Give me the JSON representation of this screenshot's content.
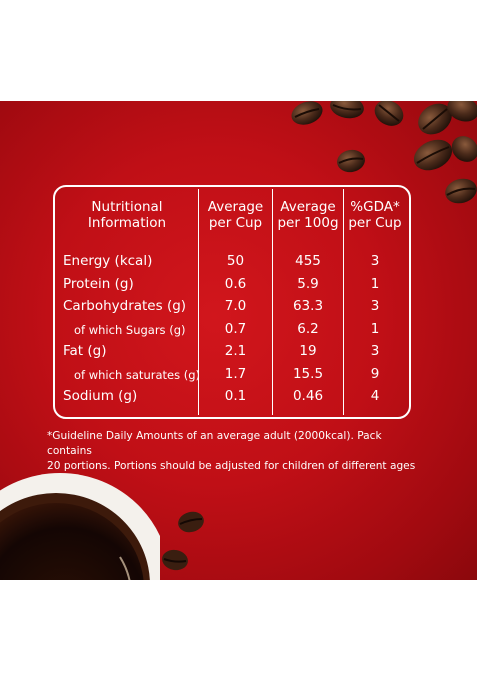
{
  "table": {
    "headers": [
      {
        "line1": "Nutritional",
        "line2": "Information"
      },
      {
        "line1": "Average",
        "line2": "per Cup"
      },
      {
        "line1": "Average",
        "line2": "per 100g"
      },
      {
        "line1": "%GDA*",
        "line2": "per Cup"
      }
    ],
    "rows": [
      {
        "label": "Energy (kcal)",
        "per_cup": "50",
        "per_100g": "455",
        "gda": "3",
        "sub": false
      },
      {
        "label": "Protein (g)",
        "per_cup": "0.6",
        "per_100g": "5.9",
        "gda": "1",
        "sub": false
      },
      {
        "label": "Carbohydrates (g)",
        "per_cup": "7.0",
        "per_100g": "63.3",
        "gda": "3",
        "sub": false
      },
      {
        "label": "of which Sugars (g)",
        "per_cup": "0.7",
        "per_100g": "6.2",
        "gda": "1",
        "sub": true
      },
      {
        "label": "Fat (g)",
        "per_cup": "2.1",
        "per_100g": "19",
        "gda": "3",
        "sub": false
      },
      {
        "label": "of which saturates (g)",
        "per_cup": "1.7",
        "per_100g": "15.5",
        "gda": "9",
        "sub": true
      },
      {
        "label": "Sodium (g)",
        "per_cup": "0.1",
        "per_100g": "0.46",
        "gda": "4",
        "sub": false
      }
    ]
  },
  "footnote": {
    "line1": "*Guideline Daily Amounts of an average adult (2000kcal). Pack contains",
    "line2": "20 portions. Portions should be adjusted for children of different ages"
  },
  "colors": {
    "background_red": "#c00f16",
    "text": "#ffffff"
  }
}
